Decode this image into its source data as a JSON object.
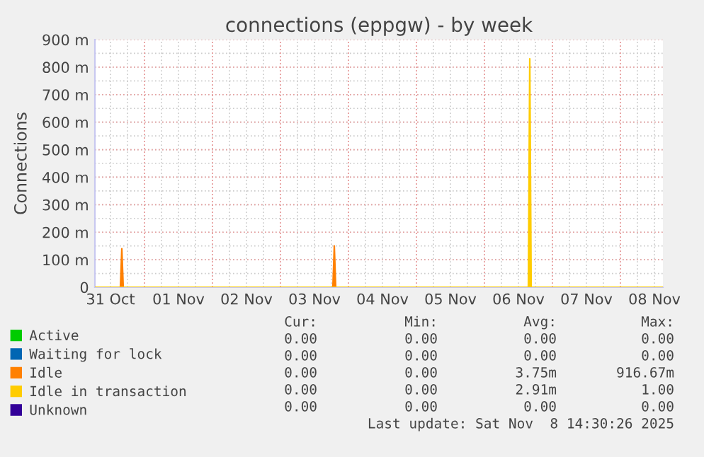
{
  "chart_data": {
    "type": "area",
    "title": "connections (eppgw) - by week",
    "ylabel": "Connections",
    "xlim": [
      "2025-10-31T06:30",
      "2025-11-08T15:00"
    ],
    "xticks": [
      {
        "value": "2025-10-31T12:00",
        "label": "31 Oct"
      },
      {
        "value": "2025-11-01T12:00",
        "label": "01 Nov"
      },
      {
        "value": "2025-11-02T12:00",
        "label": "02 Nov"
      },
      {
        "value": "2025-11-03T12:00",
        "label": "03 Nov"
      },
      {
        "value": "2025-11-04T12:00",
        "label": "04 Nov"
      },
      {
        "value": "2025-11-05T12:00",
        "label": "05 Nov"
      },
      {
        "value": "2025-11-06T12:00",
        "label": "06 Nov"
      },
      {
        "value": "2025-11-07T12:00",
        "label": "07 Nov"
      },
      {
        "value": "2025-11-08T12:00",
        "label": "08 Nov"
      }
    ],
    "ylim": [
      0,
      900
    ],
    "yticks": [
      0,
      {
        "value": 100,
        "label": "100 m"
      },
      {
        "value": 200,
        "label": "200 m"
      },
      {
        "value": 300,
        "label": "300 m"
      },
      {
        "value": 400,
        "label": "400 m"
      },
      {
        "value": 500,
        "label": "500 m"
      },
      {
        "value": 600,
        "label": "600 m"
      },
      {
        "value": 700,
        "label": "700 m"
      },
      {
        "value": 800,
        "label": "800 m"
      },
      {
        "value": 900,
        "label": "900 m"
      }
    ],
    "grid": true,
    "legend": "bottom",
    "series": [
      {
        "name": "Active",
        "color": "#00cc00"
      },
      {
        "name": "Waiting for lock",
        "color": "#0066b3"
      },
      {
        "name": "Idle",
        "color": "#ff8000",
        "x": [
          "2025-10-31T06:30",
          "2025-10-31T15:30",
          "2025-10-31T16:00",
          "2025-10-31T16:30",
          "2025-11-03T18:30",
          "2025-11-03T19:00",
          "2025-11-03T19:30",
          "2025-11-08T15:00"
        ],
        "values": [
          0,
          0,
          140,
          0,
          0,
          150,
          0,
          0
        ]
      },
      {
        "name": "Idle in transaction",
        "color": "#ffcc00",
        "x": [
          "2025-10-31T06:30",
          "2025-11-06T15:30",
          "2025-11-06T16:00",
          "2025-11-06T16:30",
          "2025-11-08T15:00"
        ],
        "values": [
          0,
          0,
          830,
          0,
          0
        ]
      },
      {
        "name": "Unknown",
        "color": "#330099"
      }
    ],
    "annotations": [
      "Cur:",
      "Min:",
      "Avg:",
      "Max:",
      "0.00",
      "0.00",
      "0.00",
      "0.00",
      "0.00",
      "0.00",
      "0.00",
      "0.00",
      "0.00",
      "0.00",
      "3.75m",
      "916.67m",
      "0.00",
      "0.00",
      "2.91m",
      "1.00",
      "0.00",
      "0.00",
      "0.00",
      "0.00",
      "Last update: Sat Nov  8 14:30:26 2025"
    ]
  }
}
